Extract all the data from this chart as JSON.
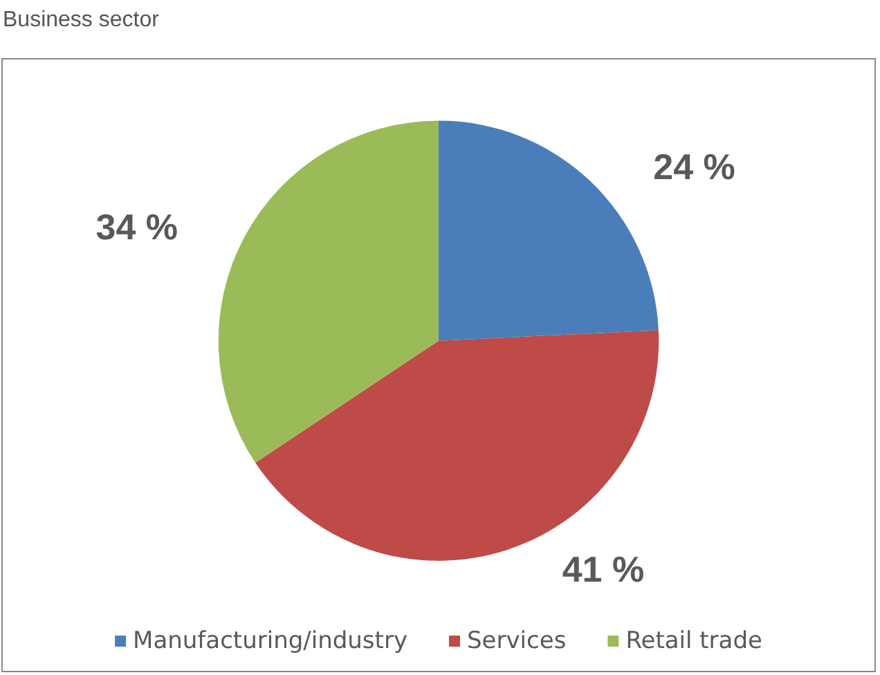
{
  "chart_data": {
    "type": "pie",
    "title": "Business sector",
    "categories": [
      "Manufacturing/industry",
      "Services",
      "Retail trade"
    ],
    "values": [
      24,
      41,
      34
    ],
    "value_labels": [
      "24 %",
      "41 %",
      "34 %"
    ],
    "colors": [
      "#4a7ebb",
      "#be4b48",
      "#9bbb59"
    ],
    "legend": "bottom"
  }
}
